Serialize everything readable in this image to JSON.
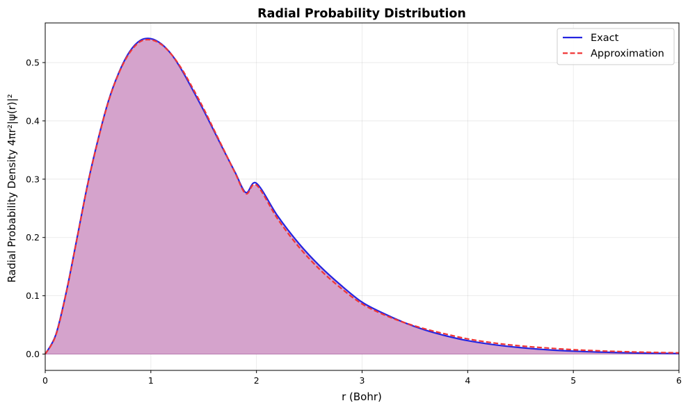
{
  "chart_data": {
    "type": "area",
    "title": "Radial Probability Distribution",
    "xlabel": "r (Bohr)",
    "ylabel": "Radial Probability Density 4πr²|ψ(r)|²",
    "xlim": [
      0,
      6
    ],
    "ylim": [
      -0.028,
      0.568
    ],
    "x_ticks": [
      0,
      1,
      2,
      3,
      4,
      5,
      6
    ],
    "x_tick_labels": [
      "0",
      "1",
      "2",
      "3",
      "4",
      "5",
      "6"
    ],
    "y_ticks": [
      0.0,
      0.1,
      0.2,
      0.3,
      0.4,
      0.5
    ],
    "y_tick_labels": [
      "0.0",
      "0.1",
      "0.2",
      "0.3",
      "0.4",
      "0.5"
    ],
    "grid": true,
    "legend_position": "top-right",
    "fill_color": "#d5a3cc",
    "series": [
      {
        "name": "Exact",
        "color": "#2424e0",
        "style": "solid",
        "x": [
          0,
          0.1,
          0.2,
          0.3,
          0.4,
          0.5,
          0.6,
          0.7,
          0.8,
          0.9,
          1.0,
          1.1,
          1.2,
          1.3,
          1.4,
          1.5,
          1.6,
          1.7,
          1.8,
          1.9,
          2.0,
          2.2,
          2.4,
          2.6,
          2.8,
          3.0,
          3.2,
          3.4,
          3.6,
          3.8,
          4.0,
          4.25,
          4.5,
          4.75,
          5.0,
          5.25,
          5.5,
          5.75,
          6.0
        ],
        "values": [
          0,
          0.033,
          0.107,
          0.198,
          0.29,
          0.368,
          0.435,
          0.484,
          0.519,
          0.538,
          0.541,
          0.532,
          0.513,
          0.485,
          0.452,
          0.418,
          0.382,
          0.346,
          0.311,
          0.277,
          0.293,
          0.237,
          0.19,
          0.151,
          0.118,
          0.089,
          0.07,
          0.054,
          0.041,
          0.031,
          0.023,
          0.016,
          0.011,
          0.0075,
          0.005,
          0.0034,
          0.0022,
          0.0014,
          0.0009
        ]
      },
      {
        "name": "Approximation",
        "color": "#f03535",
        "style": "dashed",
        "x": [
          0,
          0.1,
          0.2,
          0.3,
          0.4,
          0.5,
          0.6,
          0.7,
          0.8,
          0.9,
          1.0,
          1.1,
          1.2,
          1.3,
          1.4,
          1.5,
          1.6,
          1.7,
          1.8,
          1.9,
          2.0,
          2.2,
          2.4,
          2.6,
          2.8,
          3.0,
          3.2,
          3.4,
          3.6,
          3.8,
          4.0,
          4.25,
          4.5,
          4.75,
          5.0,
          5.25,
          5.5,
          5.75,
          6.0
        ],
        "values": [
          0,
          0.032,
          0.106,
          0.197,
          0.289,
          0.367,
          0.434,
          0.483,
          0.517,
          0.536,
          0.539,
          0.531,
          0.513,
          0.487,
          0.455,
          0.421,
          0.384,
          0.347,
          0.31,
          0.275,
          0.29,
          0.232,
          0.184,
          0.145,
          0.113,
          0.086,
          0.068,
          0.054,
          0.043,
          0.034,
          0.026,
          0.019,
          0.014,
          0.0105,
          0.0075,
          0.0055,
          0.004,
          0.0029,
          0.0021
        ]
      }
    ]
  }
}
